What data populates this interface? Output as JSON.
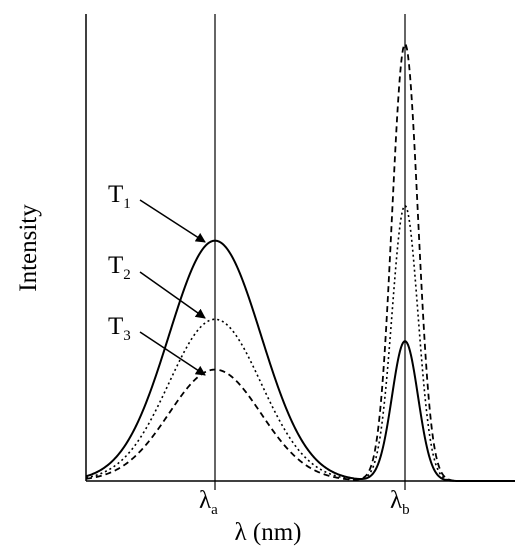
{
  "chart_data": {
    "type": "line",
    "xlabel": "λ (nm)",
    "ylabel": "Intensity",
    "x_ticks": [
      {
        "key": "a",
        "base": "λ",
        "sub": "a"
      },
      {
        "key": "b",
        "base": "λ",
        "sub": "b"
      }
    ],
    "ylim": [
      0,
      1
    ],
    "series": [
      {
        "name": "T1",
        "label_base": "T",
        "label_sub": "1",
        "style": "solid",
        "peak_a": 0.55,
        "peak_b": 0.32
      },
      {
        "name": "T2",
        "label_base": "T",
        "label_sub": "2",
        "style": "dotted",
        "peak_a": 0.37,
        "peak_b": 0.63
      },
      {
        "name": "T3",
        "label_base": "T",
        "label_sub": "3",
        "style": "dashed",
        "peak_a": 0.255,
        "peak_b": 1.0
      }
    ],
    "line_color": "#000000"
  }
}
